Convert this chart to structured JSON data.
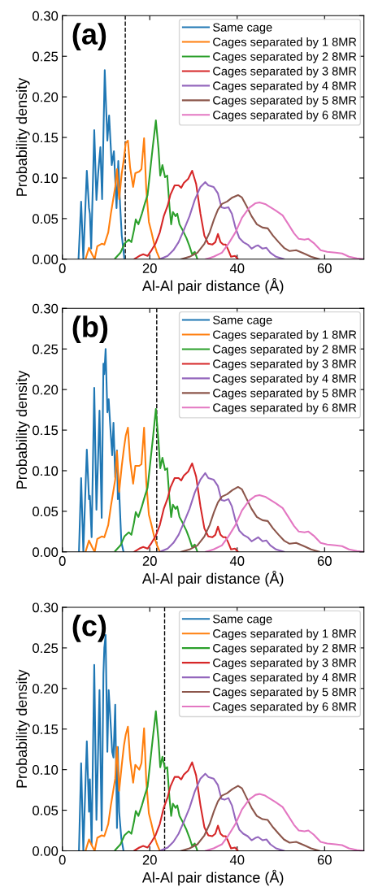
{
  "chart_data": [
    {
      "type": "line",
      "annotations": [
        "(a)"
      ],
      "xlabel": "Al-Al pair distance (Å)",
      "ylabel": "Probability density",
      "xlim": [
        0,
        69
      ],
      "ylim": [
        0,
        0.3
      ],
      "xticks": [
        0,
        20,
        40,
        60
      ],
      "yticks": [
        {
          "value": 0,
          "label": "0.00"
        },
        {
          "value": 0.05,
          "label": "0.05"
        },
        {
          "value": 0.1,
          "label": "0.10"
        },
        {
          "value": 0.15,
          "label": "0.15"
        },
        {
          "value": 0.2,
          "label": "0.20"
        },
        {
          "value": 0.25,
          "label": "0.25"
        },
        {
          "value": 0.3,
          "label": "0.30"
        }
      ],
      "legend": "top right",
      "grid": false,
      "ref_lines": [
        {
          "axis": "x",
          "value": 14.4,
          "color": "#000000",
          "line_style": "dashed"
        }
      ],
      "series": [
        {
          "name": "Same cage",
          "color": "#1f77b4",
          "x": [
            3.7,
            4.3,
            4.8,
            5.6,
            6.1,
            6.3,
            6.6,
            7.3,
            7.8,
            8.2,
            8.7,
            9.1,
            9.7,
            10.3,
            10.7,
            11.3,
            11.8,
            12.4,
            12.8,
            13.2,
            13.6,
            14.2
          ],
          "values": [
            0,
            0.071,
            0,
            0.109,
            0.063,
            0.056,
            0.013,
            0.159,
            0.073,
            0.106,
            0.138,
            0.074,
            0.233,
            0.146,
            0.177,
            0.116,
            0.133,
            0.063,
            0.121,
            0.068,
            0.029,
            0
          ]
        },
        {
          "name": "Cages separated by 1 8MR",
          "color": "#ff7f0e",
          "x": [
            5.3,
            6.1,
            6.8,
            7.4,
            8.0,
            9.0,
            9.6,
            10.5,
            11.1,
            12.1,
            12.5,
            13.0,
            13.6,
            14.1,
            14.5,
            15.0,
            15.5,
            16.2,
            16.7,
            17.6,
            18.1,
            18.7,
            19.2,
            19.8,
            20.4,
            21.0,
            21.6,
            22.3
          ],
          "values": [
            0,
            0.014,
            0.006,
            0,
            0.016,
            0.019,
            0.018,
            0.033,
            0.056,
            0.089,
            0.111,
            0.074,
            0.106,
            0.124,
            0.143,
            0.146,
            0.113,
            0.089,
            0.106,
            0.108,
            0.111,
            0.149,
            0.086,
            0.046,
            0.033,
            0.019,
            0.009,
            0
          ]
        },
        {
          "name": "Cages separated by 2 8MR",
          "color": "#2ca02c",
          "x": [
            12.1,
            13.3,
            14.2,
            15.2,
            15.8,
            16.4,
            16.8,
            17.4,
            18.2,
            18.9,
            19.5,
            20.1,
            20.7,
            21.4,
            22.0,
            22.4,
            22.9,
            23.5,
            24.0,
            24.5,
            24.9,
            25.3,
            25.9,
            26.3,
            26.8,
            27.5,
            28.4,
            29.1,
            29.7,
            30.3,
            30.9
          ],
          "values": [
            0.001,
            0.008,
            0.019,
            0.024,
            0.021,
            0.036,
            0.049,
            0.043,
            0.056,
            0.069,
            0.079,
            0.109,
            0.139,
            0.171,
            0.136,
            0.103,
            0.116,
            0.101,
            0.103,
            0.066,
            0.043,
            0.058,
            0.053,
            0.056,
            0.043,
            0.036,
            0.026,
            0.016,
            0.006,
            0.009,
            0
          ]
        },
        {
          "name": "Cages separated by 3 8MR",
          "color": "#d62728",
          "x": [
            16.4,
            17.6,
            18.5,
            19.5,
            20.4,
            21.3,
            22.3,
            23.2,
            24.1,
            24.7,
            25.7,
            26.6,
            27.2,
            27.8,
            28.8,
            29.7,
            30.6,
            31.6,
            32.5,
            33.4,
            34.3,
            35.0,
            35.6,
            36.2,
            36.8,
            37.4,
            38.0,
            38.6,
            39.5,
            40.2
          ],
          "values": [
            0,
            0.004,
            0.006,
            0.004,
            0.011,
            0.019,
            0.033,
            0.053,
            0.066,
            0.079,
            0.091,
            0.091,
            0.088,
            0.094,
            0.099,
            0.109,
            0.093,
            0.056,
            0.029,
            0.019,
            0.018,
            0.021,
            0.031,
            0.021,
            0.018,
            0.018,
            0.011,
            0.003,
            0.004,
            0
          ]
        },
        {
          "name": "Cages separated by 4 8MR",
          "color": "#9467bd",
          "x": [
            22.3,
            24.1,
            25.4,
            26.6,
            27.8,
            29.1,
            30.3,
            31.6,
            32.7,
            33.4,
            34.6,
            35.6,
            36.4,
            37.1,
            38.0,
            38.8,
            39.6,
            40.5,
            41.4,
            42.4,
            43.3,
            44.2,
            44.8,
            45.8,
            46.7,
            47.6,
            48.9,
            50.7
          ],
          "values": [
            0,
            0.004,
            0.011,
            0.021,
            0.036,
            0.053,
            0.073,
            0.089,
            0.095,
            0.091,
            0.089,
            0.081,
            0.064,
            0.063,
            0.064,
            0.056,
            0.039,
            0.026,
            0.021,
            0.018,
            0.013,
            0.016,
            0.017,
            0.013,
            0.014,
            0.008,
            0.003,
            0
          ]
        },
        {
          "name": "Cages separated by 5 8MR",
          "color": "#8c564b",
          "x": [
            27.2,
            29.1,
            30.9,
            32.5,
            33.7,
            34.7,
            35.6,
            36.5,
            37.7,
            38.9,
            40.2,
            41.1,
            42.1,
            43.3,
            44.5,
            45.8,
            47.0,
            48.2,
            49.5,
            50.7,
            52.0,
            53.5,
            54.4,
            55.7,
            56.9,
            58.8
          ],
          "values": [
            0,
            0.003,
            0.008,
            0.019,
            0.033,
            0.049,
            0.061,
            0.068,
            0.071,
            0.076,
            0.079,
            0.076,
            0.066,
            0.053,
            0.043,
            0.039,
            0.038,
            0.029,
            0.021,
            0.014,
            0.01,
            0.011,
            0.009,
            0.006,
            0.003,
            0
          ]
        },
        {
          "name": "Cages separated by 6 8MR",
          "color": "#e377c2",
          "x": [
            32.8,
            34.6,
            36.5,
            38.0,
            39.6,
            41.1,
            42.7,
            44.2,
            45.1,
            46.4,
            47.6,
            48.8,
            50.4,
            51.6,
            53.0,
            54.1,
            55.4,
            56.3,
            57.5,
            59.1,
            60.6,
            62.5,
            64.0,
            65.6,
            67.4,
            69.0
          ],
          "values": [
            0,
            0.003,
            0.008,
            0.019,
            0.033,
            0.051,
            0.063,
            0.069,
            0.07,
            0.068,
            0.064,
            0.06,
            0.054,
            0.044,
            0.032,
            0.025,
            0.024,
            0.025,
            0.02,
            0.011,
            0.009,
            0.008,
            0.007,
            0.003,
            0.001,
            0
          ]
        }
      ]
    },
    {
      "type": "line",
      "annotations": [
        "(b)"
      ],
      "xlabel": "Al-Al pair distance (Å)",
      "ylabel": "Probability density",
      "xlim": [
        0,
        69
      ],
      "ylim": [
        0,
        0.3
      ],
      "xticks": [
        0,
        20,
        40,
        60
      ],
      "yticks": [
        {
          "value": 0,
          "label": "0.00"
        },
        {
          "value": 0.05,
          "label": "0.05"
        },
        {
          "value": 0.1,
          "label": "0.10"
        },
        {
          "value": 0.15,
          "label": "0.15"
        },
        {
          "value": 0.2,
          "label": "0.20"
        },
        {
          "value": 0.25,
          "label": "0.25"
        },
        {
          "value": 0.3,
          "label": "0.30"
        }
      ],
      "legend": "top right",
      "grid": false,
      "ref_lines": [
        {
          "axis": "x",
          "value": 21.6,
          "color": "#000000",
          "line_style": "dashed"
        }
      ],
      "series": [
        {
          "name": "Same cage",
          "color": "#1f77b4",
          "x": [
            3.8,
            4.3,
            4.8,
            5.6,
            6.1,
            6.3,
            6.7,
            7.3,
            7.8,
            8.2,
            8.5,
            9.0,
            9.4,
            9.6,
            9.9,
            10.3,
            10.6,
            11.0,
            11.4,
            11.7,
            12.1,
            12.5,
            12.7,
            13.0,
            13.5,
            14.0
          ],
          "values": [
            0,
            0.091,
            0,
            0.126,
            0.065,
            0.069,
            0.018,
            0.202,
            0.052,
            0.119,
            0.174,
            0.042,
            0.232,
            0.219,
            0.25,
            0.172,
            0.188,
            0.152,
            0.119,
            0.159,
            0.092,
            0.125,
            0.065,
            0.075,
            0.012,
            0
          ]
        },
        {
          "name": "Cages separated by 1 8MR",
          "color": "#ff7f0e",
          "x": [
            5.3,
            6.1,
            6.8,
            7.4,
            8.0,
            9.0,
            9.6,
            10.5,
            11.1,
            12.1,
            12.5,
            13.0,
            13.6,
            14.1,
            14.5,
            15.0,
            15.5,
            16.2,
            16.7,
            17.6,
            18.1,
            18.7,
            19.2,
            19.8,
            20.4,
            21.0,
            21.6,
            22.3
          ],
          "values": [
            0,
            0.014,
            0.006,
            0,
            0.016,
            0.019,
            0.018,
            0.033,
            0.056,
            0.089,
            0.124,
            0.074,
            0.106,
            0.128,
            0.143,
            0.153,
            0.113,
            0.084,
            0.106,
            0.106,
            0.108,
            0.153,
            0.086,
            0.046,
            0.033,
            0.019,
            0.009,
            0
          ]
        },
        {
          "name": "Cages separated by 2 8MR",
          "color": "#2ca02c",
          "x": [
            12.1,
            13.3,
            14.2,
            15.2,
            15.8,
            16.4,
            16.8,
            17.4,
            18.2,
            18.9,
            19.5,
            20.1,
            20.7,
            21.4,
            22.0,
            22.4,
            22.9,
            23.5,
            24.0,
            24.5,
            24.9,
            25.3,
            25.9,
            26.3,
            26.8,
            27.5,
            28.4,
            29.1,
            29.7,
            30.3,
            30.9
          ],
          "values": [
            0.001,
            0.008,
            0.019,
            0.024,
            0.021,
            0.036,
            0.049,
            0.043,
            0.056,
            0.069,
            0.079,
            0.109,
            0.139,
            0.176,
            0.136,
            0.103,
            0.116,
            0.101,
            0.103,
            0.066,
            0.043,
            0.058,
            0.053,
            0.056,
            0.043,
            0.036,
            0.026,
            0.016,
            0.006,
            0.009,
            0
          ]
        },
        {
          "name": "Cages separated by 3 8MR",
          "color": "#d62728",
          "x": [
            16.4,
            17.6,
            18.5,
            19.5,
            20.4,
            21.3,
            22.3,
            23.2,
            24.1,
            24.7,
            25.7,
            26.6,
            27.2,
            27.8,
            28.8,
            29.7,
            30.6,
            31.6,
            32.5,
            33.4,
            34.3,
            35.0,
            35.6,
            36.2,
            36.8,
            37.4,
            38.0,
            38.6,
            39.5,
            40.2
          ],
          "values": [
            0,
            0.004,
            0.006,
            0.004,
            0.011,
            0.019,
            0.033,
            0.053,
            0.066,
            0.079,
            0.091,
            0.091,
            0.088,
            0.094,
            0.099,
            0.109,
            0.093,
            0.056,
            0.029,
            0.019,
            0.018,
            0.021,
            0.031,
            0.021,
            0.018,
            0.018,
            0.011,
            0.003,
            0.004,
            0
          ]
        },
        {
          "name": "Cages separated by 4 8MR",
          "color": "#9467bd",
          "x": [
            22.3,
            24.1,
            25.4,
            26.6,
            27.8,
            29.1,
            30.3,
            31.6,
            32.7,
            33.4,
            34.6,
            35.6,
            36.4,
            37.1,
            38.0,
            38.8,
            39.6,
            40.5,
            41.4,
            42.4,
            43.3,
            44.2,
            44.8,
            45.8,
            46.7,
            47.6,
            48.9,
            50.7
          ],
          "values": [
            0,
            0.004,
            0.011,
            0.021,
            0.036,
            0.053,
            0.073,
            0.089,
            0.097,
            0.091,
            0.089,
            0.081,
            0.064,
            0.063,
            0.065,
            0.056,
            0.039,
            0.026,
            0.021,
            0.018,
            0.013,
            0.016,
            0.018,
            0.013,
            0.014,
            0.008,
            0.003,
            0
          ]
        },
        {
          "name": "Cages separated by 5 8MR",
          "color": "#8c564b",
          "x": [
            27.2,
            29.1,
            30.9,
            32.5,
            33.7,
            34.7,
            35.6,
            36.5,
            37.7,
            38.9,
            40.2,
            41.1,
            42.1,
            43.3,
            44.5,
            45.8,
            47.0,
            48.2,
            49.5,
            50.7,
            52.0,
            53.5,
            54.4,
            55.7,
            56.9,
            58.8
          ],
          "values": [
            0,
            0.003,
            0.008,
            0.019,
            0.033,
            0.049,
            0.061,
            0.068,
            0.071,
            0.076,
            0.08,
            0.077,
            0.066,
            0.053,
            0.043,
            0.039,
            0.038,
            0.029,
            0.021,
            0.014,
            0.01,
            0.011,
            0.009,
            0.006,
            0.003,
            0
          ]
        },
        {
          "name": "Cages separated by 6 8MR",
          "color": "#e377c2",
          "x": [
            32.8,
            34.6,
            36.5,
            38.0,
            39.6,
            41.1,
            42.7,
            44.2,
            45.1,
            46.4,
            47.6,
            48.8,
            50.4,
            51.6,
            53.0,
            54.1,
            55.4,
            56.3,
            57.5,
            59.1,
            60.6,
            62.5,
            64.0,
            65.6,
            67.4,
            69.0
          ],
          "values": [
            0,
            0.003,
            0.008,
            0.019,
            0.033,
            0.051,
            0.063,
            0.069,
            0.07,
            0.068,
            0.064,
            0.06,
            0.054,
            0.044,
            0.032,
            0.025,
            0.024,
            0.025,
            0.02,
            0.011,
            0.009,
            0.008,
            0.007,
            0.003,
            0.001,
            0
          ]
        }
      ]
    },
    {
      "type": "line",
      "annotations": [
        "(c)"
      ],
      "xlabel": "Al-Al pair distance (Å)",
      "ylabel": "Probability density",
      "xlim": [
        0,
        69
      ],
      "ylim": [
        0,
        0.3
      ],
      "xticks": [
        0,
        20,
        40,
        60
      ],
      "yticks": [
        {
          "value": 0,
          "label": "0.00"
        },
        {
          "value": 0.05,
          "label": "0.05"
        },
        {
          "value": 0.1,
          "label": "0.10"
        },
        {
          "value": 0.15,
          "label": "0.15"
        },
        {
          "value": 0.2,
          "label": "0.20"
        },
        {
          "value": 0.25,
          "label": "0.25"
        },
        {
          "value": 0.3,
          "label": "0.30"
        }
      ],
      "legend": "top right",
      "grid": false,
      "ref_lines": [
        {
          "axis": "x",
          "value": 23.4,
          "color": "#000000",
          "line_style": "dashed"
        }
      ],
      "series": [
        {
          "name": "Same cage",
          "color": "#1f77b4",
          "x": [
            3.8,
            4.3,
            4.8,
            5.6,
            6.1,
            6.3,
            6.7,
            7.3,
            7.8,
            8.2,
            8.5,
            9.0,
            9.4,
            9.6,
            9.9,
            10.3,
            10.6,
            11.0,
            11.4,
            11.7,
            12.1,
            12.5,
            12.7,
            13.0,
            13.5,
            14.0
          ],
          "values": [
            0,
            0.108,
            0,
            0.135,
            0.048,
            0.088,
            0.008,
            0.229,
            0.038,
            0.128,
            0.198,
            0.025,
            0.218,
            0.25,
            0.266,
            0.122,
            0.198,
            0.162,
            0.122,
            0.115,
            0.18,
            0.028,
            0.128,
            0.048,
            0.015,
            0
          ]
        },
        {
          "name": "Cages separated by 1 8MR",
          "color": "#ff7f0e",
          "x": [
            5.3,
            6.1,
            6.8,
            7.4,
            8.0,
            9.0,
            9.6,
            10.5,
            11.1,
            12.1,
            12.5,
            13.0,
            13.6,
            14.1,
            14.5,
            15.0,
            15.5,
            16.2,
            16.7,
            17.6,
            18.1,
            18.7,
            19.2,
            19.8,
            20.4,
            21.0,
            21.6,
            22.3
          ],
          "values": [
            0,
            0.014,
            0.006,
            0,
            0.016,
            0.019,
            0.018,
            0.033,
            0.056,
            0.089,
            0.128,
            0.074,
            0.106,
            0.13,
            0.143,
            0.153,
            0.113,
            0.084,
            0.106,
            0.1,
            0.108,
            0.151,
            0.086,
            0.046,
            0.033,
            0.019,
            0.009,
            0
          ]
        },
        {
          "name": "Cages separated by 2 8MR",
          "color": "#2ca02c",
          "x": [
            12.1,
            13.3,
            14.2,
            15.2,
            15.8,
            16.4,
            16.8,
            17.4,
            18.2,
            18.9,
            19.5,
            20.1,
            20.7,
            21.4,
            22.0,
            22.4,
            22.9,
            23.5,
            24.0,
            24.5,
            24.9,
            25.3,
            25.9,
            26.3,
            26.8,
            27.5,
            28.4,
            29.1,
            29.7,
            30.3,
            30.9
          ],
          "values": [
            0.001,
            0.008,
            0.019,
            0.024,
            0.021,
            0.036,
            0.049,
            0.043,
            0.056,
            0.069,
            0.079,
            0.109,
            0.139,
            0.172,
            0.136,
            0.103,
            0.116,
            0.101,
            0.103,
            0.066,
            0.043,
            0.058,
            0.053,
            0.056,
            0.043,
            0.036,
            0.026,
            0.016,
            0.006,
            0.009,
            0
          ]
        },
        {
          "name": "Cages separated by 3 8MR",
          "color": "#d62728",
          "x": [
            16.4,
            17.6,
            18.5,
            19.5,
            20.4,
            21.3,
            22.3,
            23.2,
            24.1,
            24.7,
            25.7,
            26.6,
            27.2,
            27.8,
            28.8,
            29.7,
            30.6,
            31.6,
            32.5,
            33.4,
            34.3,
            35.0,
            35.6,
            36.2,
            36.8,
            37.4,
            38.0,
            38.6,
            39.5,
            40.2
          ],
          "values": [
            0,
            0.004,
            0.006,
            0.004,
            0.011,
            0.019,
            0.033,
            0.053,
            0.066,
            0.079,
            0.091,
            0.091,
            0.088,
            0.094,
            0.099,
            0.109,
            0.093,
            0.056,
            0.029,
            0.019,
            0.018,
            0.021,
            0.031,
            0.021,
            0.018,
            0.018,
            0.011,
            0.003,
            0.004,
            0
          ]
        },
        {
          "name": "Cages separated by 4 8MR",
          "color": "#9467bd",
          "x": [
            22.3,
            24.1,
            25.4,
            26.6,
            27.8,
            29.1,
            30.3,
            31.6,
            32.7,
            33.4,
            34.6,
            35.6,
            36.4,
            37.1,
            38.0,
            38.8,
            39.6,
            40.5,
            41.4,
            42.4,
            43.3,
            44.2,
            44.8,
            45.8,
            46.7,
            47.6,
            48.9,
            50.7
          ],
          "values": [
            0,
            0.004,
            0.011,
            0.021,
            0.036,
            0.053,
            0.073,
            0.089,
            0.095,
            0.091,
            0.089,
            0.081,
            0.064,
            0.063,
            0.065,
            0.056,
            0.039,
            0.026,
            0.021,
            0.018,
            0.013,
            0.016,
            0.017,
            0.013,
            0.014,
            0.008,
            0.003,
            0
          ]
        },
        {
          "name": "Cages separated by 5 8MR",
          "color": "#8c564b",
          "x": [
            27.2,
            29.1,
            30.9,
            32.5,
            33.7,
            34.7,
            35.6,
            36.5,
            37.7,
            38.9,
            40.2,
            41.1,
            42.1,
            43.3,
            44.5,
            45.8,
            47.0,
            48.2,
            49.5,
            50.7,
            52.0,
            53.5,
            54.4,
            55.7,
            56.9,
            58.8
          ],
          "values": [
            0,
            0.003,
            0.008,
            0.019,
            0.033,
            0.049,
            0.061,
            0.068,
            0.071,
            0.076,
            0.08,
            0.077,
            0.066,
            0.053,
            0.043,
            0.039,
            0.038,
            0.029,
            0.021,
            0.014,
            0.01,
            0.011,
            0.009,
            0.006,
            0.003,
            0
          ]
        },
        {
          "name": "Cages separated by 6 8MR",
          "color": "#e377c2",
          "x": [
            32.8,
            34.6,
            36.5,
            38.0,
            39.6,
            41.1,
            42.7,
            44.2,
            45.1,
            46.4,
            47.6,
            48.8,
            50.4,
            51.6,
            53.0,
            54.1,
            55.4,
            56.3,
            57.5,
            59.1,
            60.6,
            62.5,
            64.0,
            65.6,
            67.4,
            69.0
          ],
          "values": [
            0,
            0.003,
            0.008,
            0.019,
            0.033,
            0.051,
            0.063,
            0.069,
            0.07,
            0.068,
            0.064,
            0.06,
            0.054,
            0.044,
            0.032,
            0.025,
            0.024,
            0.025,
            0.02,
            0.011,
            0.009,
            0.008,
            0.007,
            0.003,
            0.001,
            0
          ]
        }
      ]
    }
  ]
}
